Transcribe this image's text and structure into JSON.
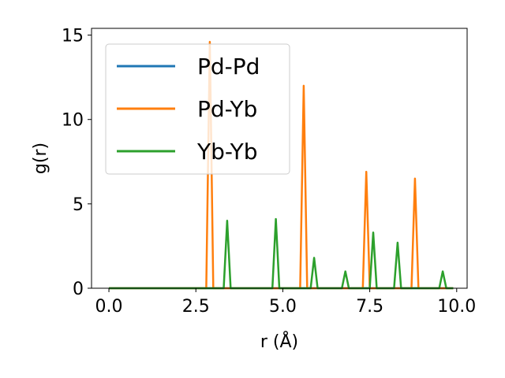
{
  "chart_data": {
    "type": "line",
    "xlabel": "r (Å)",
    "ylabel": "g(r)",
    "xlim": [
      -0.5,
      10.3
    ],
    "ylim": [
      0,
      15.4
    ],
    "x_ticks": [
      0.0,
      2.5,
      5.0,
      7.5,
      10.0
    ],
    "x_tick_labels": [
      "0.0",
      "2.5",
      "5.0",
      "7.5",
      "10.0"
    ],
    "y_ticks": [
      0,
      5,
      10,
      15
    ],
    "y_tick_labels": [
      "0",
      "5",
      "10",
      "15"
    ],
    "grid": false,
    "legend_position": "top-left",
    "series": [
      {
        "name": "Pd-Pd",
        "color": "#1f77b4",
        "x": [
          0.0,
          9.9
        ],
        "y": [
          0,
          0
        ]
      },
      {
        "name": "Pd-Yb",
        "color": "#ff7f0e",
        "x": [
          0.0,
          2.8,
          2.9,
          3.0,
          5.5,
          5.6,
          5.7,
          7.3,
          7.4,
          7.5,
          8.7,
          8.8,
          8.9,
          9.9
        ],
        "y": [
          0,
          0,
          14.6,
          0,
          0,
          12.0,
          0,
          0,
          6.9,
          0,
          0,
          6.5,
          0,
          0
        ]
      },
      {
        "name": "Yb-Yb",
        "color": "#2ca02c",
        "x": [
          0.0,
          3.3,
          3.4,
          3.5,
          4.7,
          4.8,
          4.9,
          5.8,
          5.9,
          6.0,
          6.7,
          6.8,
          6.9,
          7.5,
          7.6,
          7.7,
          8.2,
          8.3,
          8.4,
          9.5,
          9.6,
          9.7,
          9.9
        ],
        "y": [
          0,
          0,
          4.0,
          0,
          0,
          4.1,
          0,
          0,
          1.8,
          0,
          0,
          1.0,
          0,
          0,
          3.3,
          0,
          0,
          2.7,
          0,
          0,
          1.0,
          0,
          0
        ]
      }
    ]
  }
}
